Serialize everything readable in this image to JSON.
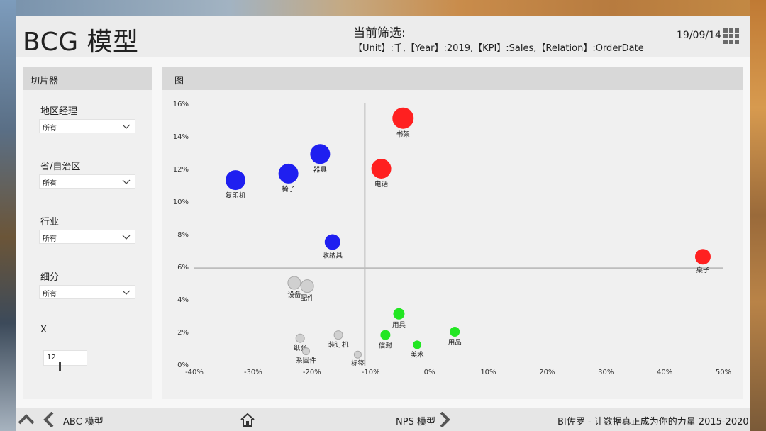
{
  "header": {
    "title": "BCG 模型",
    "filter_label": "当前筛选:",
    "filter_text": "【Unit】:千,【Year】:2019,【KPI】:Sales,【Relation】:OrderDate",
    "date": "19/09/14",
    "menu_icon": "grid-menu-icon"
  },
  "slicer": {
    "title": "切片器",
    "fields": [
      {
        "label": "地区经理",
        "value": "所有"
      },
      {
        "label": "省/自治区",
        "value": "所有"
      },
      {
        "label": "行业",
        "value": "所有"
      },
      {
        "label": "细分",
        "value": "所有"
      }
    ],
    "x_label": "X",
    "x_value": "12",
    "x_slider_fraction": 0.16
  },
  "chart_panel": {
    "title": "图"
  },
  "chart_data": {
    "type": "scatter",
    "title": "",
    "xlabel": "",
    "ylabel": "",
    "xlim": [
      -40,
      50
    ],
    "ylim": [
      0,
      16
    ],
    "x_ticks": [
      "-40%",
      "-30%",
      "-20%",
      "-10%",
      "0%",
      "10%",
      "20%",
      "30%",
      "40%",
      "50%"
    ],
    "y_ticks": [
      "0%",
      "2%",
      "4%",
      "6%",
      "8%",
      "10%",
      "12%",
      "14%",
      "16%"
    ],
    "reference_lines": {
      "x": -11,
      "y": 5.9
    },
    "grid": false,
    "colors": {
      "red": "#ff2020",
      "blue": "#1f1ff0",
      "green": "#22e622",
      "gray": "#d0d0d0"
    },
    "points": [
      {
        "label": "书架",
        "x": -4.5,
        "y": 15.1,
        "size": 15,
        "color": "red"
      },
      {
        "label": "电话",
        "x": -8.2,
        "y": 12.0,
        "size": 14,
        "color": "red"
      },
      {
        "label": "桌子",
        "x": 46.5,
        "y": 6.6,
        "size": 11,
        "color": "red"
      },
      {
        "label": "器具",
        "x": -18.6,
        "y": 12.9,
        "size": 14,
        "color": "blue"
      },
      {
        "label": "椅子",
        "x": -24.0,
        "y": 11.7,
        "size": 14,
        "color": "blue"
      },
      {
        "label": "复印机",
        "x": -33.0,
        "y": 11.3,
        "size": 14,
        "color": "blue"
      },
      {
        "label": "收纳具",
        "x": -16.5,
        "y": 7.5,
        "size": 11,
        "color": "blue"
      },
      {
        "label": "配件",
        "x": -20.8,
        "y": 4.8,
        "size": 9,
        "color": "gray"
      },
      {
        "label": "设备",
        "x": -23.0,
        "y": 5.0,
        "size": 9,
        "color": "gray"
      },
      {
        "label": "用具",
        "x": -5.2,
        "y": 3.1,
        "size": 8,
        "color": "green"
      },
      {
        "label": "用品",
        "x": 4.3,
        "y": 2.0,
        "size": 7,
        "color": "green"
      },
      {
        "label": "信封",
        "x": -7.5,
        "y": 1.8,
        "size": 7,
        "color": "green"
      },
      {
        "label": "美术",
        "x": -2.1,
        "y": 1.2,
        "size": 6,
        "color": "green"
      },
      {
        "label": "纸张",
        "x": -22.0,
        "y": 1.6,
        "size": 6,
        "color": "gray"
      },
      {
        "label": "装订机",
        "x": -15.5,
        "y": 1.8,
        "size": 6,
        "color": "gray"
      },
      {
        "label": "标签",
        "x": -12.2,
        "y": 0.6,
        "size": 5,
        "color": "gray"
      },
      {
        "label": "系固件",
        "x": -21.0,
        "y": 0.8,
        "size": 5,
        "color": "gray"
      }
    ]
  },
  "footer": {
    "prev_label": "ABC 模型",
    "next_label": "NPS 模型",
    "credit": "BI佐罗 - 让数据真正成为你的力量 2015-2020"
  }
}
